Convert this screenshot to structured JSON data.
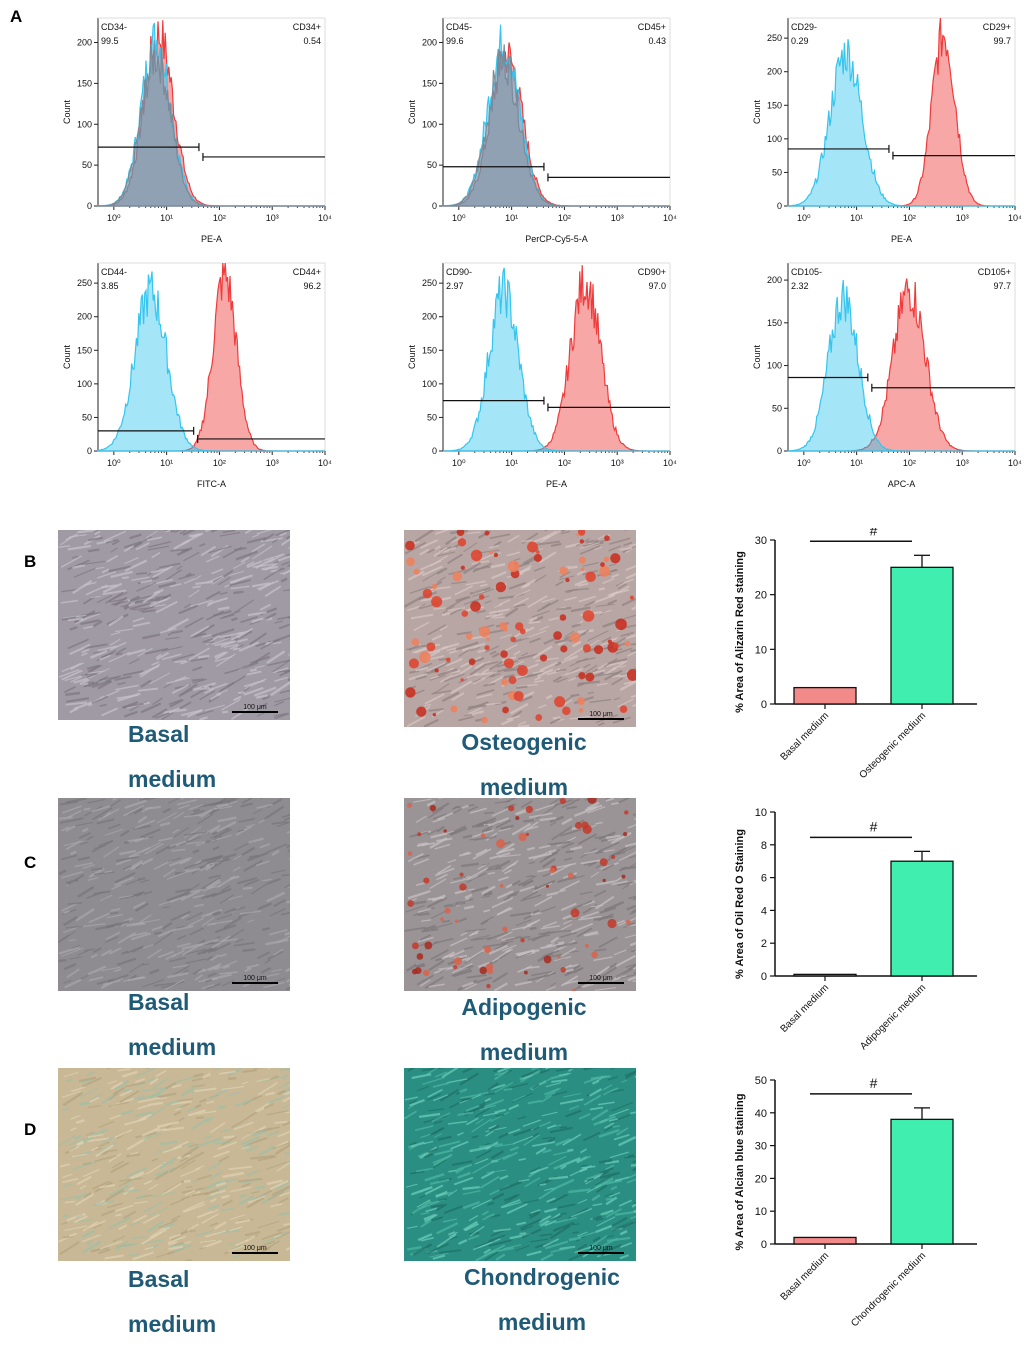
{
  "panels": {
    "a": "A",
    "b": "B",
    "c": "C",
    "d": "D"
  },
  "colors": {
    "negative": "#35c5ee",
    "positive": "#ef3b3b",
    "bar_basal": "#f28a8a",
    "bar_diff": "#40efb0",
    "caption": "#1f5a77"
  },
  "histograms": [
    {
      "neg_label": "CD34-",
      "neg_value": "99.5",
      "pos_label": "CD34+",
      "pos_value": "0.54",
      "xlabel": "PE-A",
      "ylabel": "Count",
      "y_ticks": [
        "0",
        "50",
        "100",
        "150",
        "200"
      ],
      "ymax": 230,
      "neg_peak_log": 0.8,
      "neg_width": 0.28,
      "neg_height": 210,
      "pos_peak_log": 0.85,
      "pos_width": 0.28,
      "pos_height": 215,
      "gate_log": 1.65,
      "gate_neg_y": 72,
      "gate_pos_y": 60
    },
    {
      "neg_label": "CD45-",
      "neg_value": "99.6",
      "pos_label": "CD45+",
      "pos_value": "0.43",
      "xlabel": "PerCP-Cy5-5-A",
      "ylabel": "Count",
      "y_ticks": [
        "0",
        "50",
        "100",
        "150",
        "200"
      ],
      "ymax": 230,
      "neg_peak_log": 0.85,
      "neg_width": 0.3,
      "neg_height": 205,
      "pos_peak_log": 0.9,
      "pos_width": 0.3,
      "pos_height": 190,
      "gate_log": 1.65,
      "gate_neg_y": 48,
      "gate_pos_y": 35
    },
    {
      "neg_label": "CD29-",
      "neg_value": "0.29",
      "pos_label": "CD29+",
      "pos_value": "99.7",
      "xlabel": "PE-A",
      "ylabel": "Count",
      "y_ticks": [
        "0",
        "50",
        "100",
        "150",
        "200",
        "250"
      ],
      "ymax": 280,
      "neg_peak_log": 0.8,
      "neg_width": 0.3,
      "neg_height": 235,
      "pos_peak_log": 2.65,
      "pos_width": 0.22,
      "pos_height": 265,
      "gate_log": 1.65,
      "gate_neg_y": 85,
      "gate_pos_y": 75
    },
    {
      "neg_label": "CD44-",
      "neg_value": "3.85",
      "pos_label": "CD44+",
      "pos_value": "96.2",
      "xlabel": "FITC-A",
      "ylabel": "Count",
      "y_ticks": [
        "0",
        "50",
        "100",
        "150",
        "200",
        "250"
      ],
      "ymax": 280,
      "neg_peak_log": 0.7,
      "neg_width": 0.3,
      "neg_height": 245,
      "pos_peak_log": 2.1,
      "pos_width": 0.22,
      "pos_height": 270,
      "gate_log": 1.55,
      "gate_neg_y": 30,
      "gate_pos_y": 18
    },
    {
      "neg_label": "CD90-",
      "neg_value": "2.97",
      "pos_label": "CD90+",
      "pos_value": "97.0",
      "xlabel": "PE-A",
      "ylabel": "Count",
      "y_ticks": [
        "0",
        "50",
        "100",
        "150",
        "200",
        "250"
      ],
      "ymax": 280,
      "neg_peak_log": 0.85,
      "neg_width": 0.28,
      "neg_height": 245,
      "pos_peak_log": 2.4,
      "pos_width": 0.28,
      "pos_height": 260,
      "gate_log": 1.65,
      "gate_neg_y": 75,
      "gate_pos_y": 65
    },
    {
      "neg_label": "CD105-",
      "neg_value": "2.32",
      "pos_label": "CD105+",
      "pos_value": "97.7",
      "xlabel": "APC-A",
      "ylabel": "Count",
      "y_ticks": [
        "0",
        "50",
        "100",
        "150",
        "200"
      ],
      "ymax": 220,
      "neg_peak_log": 0.75,
      "neg_width": 0.28,
      "neg_height": 185,
      "pos_peak_log": 2.0,
      "pos_width": 0.3,
      "pos_height": 195,
      "gate_log": 1.25,
      "gate_neg_y": 86,
      "gate_pos_y": 74
    }
  ],
  "hist_x_ticks": [
    "10⁰",
    "10¹",
    "10²",
    "10³",
    "10⁴"
  ],
  "micrographs": [
    {
      "scale_label": "100 μm",
      "caption_line1": "Basal",
      "caption_line2": "medium"
    },
    {
      "scale_label": "100 μm",
      "caption_line1": "Osteogenic",
      "caption_line2": "medium"
    },
    {
      "scale_label": "100 μm",
      "caption_line1": "Basal",
      "caption_line2": "medium"
    },
    {
      "scale_label": "100 μm",
      "caption_line1": "Adipogenic",
      "caption_line2": "medium"
    },
    {
      "scale_label": "100 μm",
      "caption_line1": "Basal",
      "caption_line2": "medium"
    },
    {
      "scale_label": "100 μm",
      "caption_line1": "Chondrogenic",
      "caption_line2": "medium"
    }
  ],
  "chart_data": [
    {
      "type": "bar",
      "title": "",
      "ylabel": "% Area of Alizarin Red staining",
      "xlabel": "",
      "categories": [
        "Basal medium",
        "Osteogenic medium"
      ],
      "values": [
        3,
        25
      ],
      "errors": [
        0,
        2.2
      ],
      "ylim": [
        0,
        30
      ],
      "y_ticks": [
        "0",
        "10",
        "20",
        "30"
      ],
      "annotation": "#"
    },
    {
      "type": "bar",
      "title": "",
      "ylabel": "% Area of Oil Red O Staining",
      "xlabel": "",
      "categories": [
        "Basal medium",
        "Adipogenic medium"
      ],
      "values": [
        0.1,
        7
      ],
      "errors": [
        0,
        0.6
      ],
      "ylim": [
        0,
        10
      ],
      "y_ticks": [
        "0",
        "2",
        "4",
        "6",
        "8",
        "10"
      ],
      "annotation": "#"
    },
    {
      "type": "bar",
      "title": "",
      "ylabel": "% Area of Alcian blue staining",
      "xlabel": "",
      "categories": [
        "Basal medium",
        "Chondrogenic medium"
      ],
      "values": [
        2,
        38
      ],
      "errors": [
        0,
        3.5
      ],
      "ylim": [
        0,
        50
      ],
      "y_ticks": [
        "0",
        "10",
        "20",
        "30",
        "40",
        "50"
      ],
      "annotation": "#"
    }
  ]
}
